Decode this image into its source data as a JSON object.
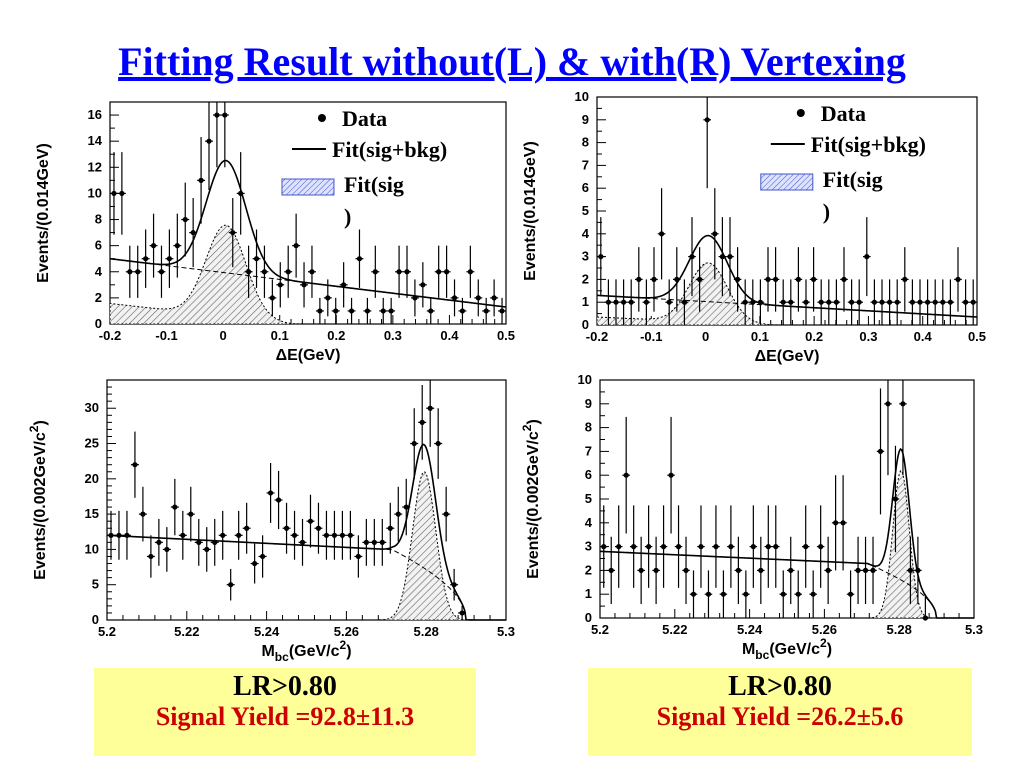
{
  "title": "Fitting Result without(L) & with(R) Vertexing",
  "legend": {
    "data": "Data",
    "fit_total": "Fit(sig+bkg)",
    "fit_sig_line1": "Fit(sig",
    "fit_sig_line2": ")"
  },
  "boxes": [
    {
      "lr": "LR>0.80",
      "yield": "Signal Yield =92.8±11.3"
    },
    {
      "lr": "LR>0.80",
      "yield": "Signal Yield =26.2±5.6"
    }
  ],
  "chart_data": [
    {
      "type": "scatter",
      "xlabel": "ΔE(GeV)",
      "ylabel": "Events/(0.014GeV)",
      "xlim": [
        -0.2,
        0.5
      ],
      "ylim": [
        0,
        17
      ],
      "xticks": [
        "-0.2",
        "-0.1",
        "0",
        "0.1",
        "0.2",
        "0.3",
        "0.4",
        "0.5"
      ],
      "yticks": [
        "0",
        "2",
        "4",
        "6",
        "8",
        "10",
        "12",
        "14",
        "16"
      ],
      "series": [
        {
          "name": "Data",
          "x": [
            -0.193,
            -0.179,
            -0.165,
            -0.151,
            -0.137,
            -0.123,
            -0.109,
            -0.095,
            -0.081,
            -0.067,
            -0.053,
            -0.039,
            -0.025,
            -0.011,
            0.003,
            0.017,
            0.031,
            0.045,
            0.059,
            0.073,
            0.087,
            0.101,
            0.115,
            0.129,
            0.143,
            0.157,
            0.171,
            0.185,
            0.199,
            0.213,
            0.227,
            0.241,
            0.255,
            0.269,
            0.283,
            0.297,
            0.311,
            0.325,
            0.339,
            0.353,
            0.367,
            0.381,
            0.395,
            0.409,
            0.423,
            0.437,
            0.451,
            0.465,
            0.479,
            0.493
          ],
          "y": [
            10,
            10,
            4,
            4,
            5,
            6,
            4,
            5,
            6,
            8,
            7,
            11,
            14,
            16,
            16,
            7,
            10,
            4,
            5,
            4,
            2,
            3,
            4,
            6,
            3,
            4,
            1,
            2,
            1,
            3,
            1,
            5,
            1,
            4,
            1,
            1,
            4,
            4,
            2,
            3,
            1,
            4,
            4,
            2,
            1,
            4,
            2,
            1,
            2,
            1
          ]
        }
      ],
      "fit_total_params": {
        "background_at_xmin": 5.0,
        "background_at_xmax": 1.3,
        "peak_amplitude": 8.6,
        "mean": 0.005,
        "sigma": 0.035
      },
      "fit_sig_params": {
        "background_at_xmin": 4.5,
        "background_at_xmax": 0.0,
        "peak_amplitude": 7.0,
        "mean": 0.005,
        "sigma": 0.035
      }
    },
    {
      "type": "scatter",
      "xlabel": "ΔE(GeV)",
      "ylabel": "Events/(0.014GeV)",
      "xlim": [
        -0.2,
        0.5
      ],
      "ylim": [
        0,
        10
      ],
      "xticks": [
        "-0.2",
        "-0.1",
        "0",
        "0.1",
        "0.2",
        "0.3",
        "0.4",
        "0.5"
      ],
      "yticks": [
        "0",
        "1",
        "2",
        "3",
        "4",
        "5",
        "6",
        "7",
        "8",
        "9",
        "10"
      ],
      "series": [
        {
          "name": "Data",
          "x": [
            -0.193,
            -0.179,
            -0.165,
            -0.151,
            -0.137,
            -0.123,
            -0.109,
            -0.095,
            -0.081,
            -0.067,
            -0.053,
            -0.039,
            -0.025,
            -0.011,
            0.003,
            0.017,
            0.031,
            0.045,
            0.059,
            0.073,
            0.087,
            0.101,
            0.115,
            0.129,
            0.143,
            0.157,
            0.171,
            0.185,
            0.199,
            0.213,
            0.227,
            0.241,
            0.255,
            0.269,
            0.283,
            0.297,
            0.311,
            0.325,
            0.339,
            0.353,
            0.367,
            0.381,
            0.395,
            0.409,
            0.423,
            0.437,
            0.451,
            0.465,
            0.479,
            0.493
          ],
          "y": [
            3,
            1,
            1,
            1,
            1,
            2,
            1,
            2,
            4,
            1,
            2,
            1,
            3,
            2,
            9,
            4,
            3,
            3,
            2,
            1,
            1,
            1,
            2,
            2,
            1,
            1,
            2,
            1,
            2,
            1,
            1,
            1,
            2,
            1,
            1,
            3,
            1,
            1,
            1,
            1,
            2,
            1,
            1,
            1,
            1,
            1,
            1,
            2,
            1,
            1
          ]
        }
      ],
      "fit_total_params": {
        "background_at_xmin": 1.3,
        "background_at_xmax": 0.35,
        "peak_amplitude": 2.9,
        "mean": 0.005,
        "sigma": 0.035
      },
      "fit_sig_params": {
        "background_at_xmin": 1.0,
        "background_at_xmax": 0.0,
        "peak_amplitude": 2.6,
        "mean": 0.005,
        "sigma": 0.035
      }
    },
    {
      "type": "scatter",
      "xlabel": "Mbc(GeV/c2)",
      "ylabel": "Events/(0.002GeV/c2)",
      "xlim": [
        5.2,
        5.3
      ],
      "ylim": [
        0,
        34
      ],
      "xticks": [
        "5.2",
        "5.22",
        "5.24",
        "5.26",
        "5.28",
        "5.3"
      ],
      "yticks": [
        "0",
        "5",
        "10",
        "15",
        "20",
        "25",
        "30"
      ],
      "series": [
        {
          "name": "Data",
          "x": [
            5.201,
            5.203,
            5.205,
            5.207,
            5.209,
            5.211,
            5.213,
            5.215,
            5.217,
            5.219,
            5.221,
            5.223,
            5.225,
            5.227,
            5.229,
            5.231,
            5.233,
            5.235,
            5.237,
            5.239,
            5.241,
            5.243,
            5.245,
            5.247,
            5.249,
            5.251,
            5.253,
            5.255,
            5.257,
            5.259,
            5.261,
            5.263,
            5.265,
            5.267,
            5.269,
            5.271,
            5.273,
            5.275,
            5.277,
            5.279,
            5.281,
            5.283,
            5.285,
            5.287,
            5.289
          ],
          "y": [
            12,
            12,
            12,
            22,
            15,
            9,
            11,
            10,
            16,
            12,
            15,
            11,
            10,
            11,
            12,
            5,
            12,
            13,
            8,
            9,
            18,
            17,
            13,
            12,
            11,
            14,
            13,
            12,
            12,
            12,
            12,
            9,
            11,
            11,
            11,
            13,
            15,
            16,
            25,
            28,
            30,
            25,
            15,
            5,
            1
          ]
        }
      ],
      "fit_total_params": {
        "background_at_xmin": 12,
        "background_at_xmax": 10,
        "endpoint": 5.29,
        "peak_amplitude": 17.5,
        "mean": 5.2795,
        "sigma": 0.0029
      },
      "fit_sig_params": {
        "peak_amplitude": 21,
        "mean": 5.2795,
        "sigma": 0.0029
      }
    },
    {
      "type": "scatter",
      "xlabel": "Mbc(GeV/c2)",
      "ylabel": "Events/(0.002GeV/c2)",
      "xlim": [
        5.2,
        5.3
      ],
      "ylim": [
        0,
        10
      ],
      "xticks": [
        "5.2",
        "5.22",
        "5.24",
        "5.26",
        "5.28",
        "5.3"
      ],
      "yticks": [
        "0",
        "1",
        "2",
        "3",
        "4",
        "5",
        "6",
        "7",
        "8",
        "9",
        "10"
      ],
      "series": [
        {
          "name": "Data",
          "x": [
            5.201,
            5.203,
            5.205,
            5.207,
            5.209,
            5.211,
            5.213,
            5.215,
            5.217,
            5.219,
            5.221,
            5.223,
            5.225,
            5.227,
            5.229,
            5.231,
            5.233,
            5.235,
            5.237,
            5.239,
            5.241,
            5.243,
            5.245,
            5.247,
            5.249,
            5.251,
            5.253,
            5.255,
            5.257,
            5.259,
            5.261,
            5.263,
            5.265,
            5.267,
            5.269,
            5.271,
            5.273,
            5.275,
            5.277,
            5.279,
            5.281,
            5.283,
            5.285,
            5.287
          ],
          "y": [
            3,
            2,
            3,
            6,
            3,
            2,
            3,
            2,
            3,
            6,
            3,
            2,
            1,
            3,
            1,
            3,
            1,
            3,
            2,
            1,
            3,
            2,
            3,
            3,
            1,
            2,
            1,
            3,
            1,
            3,
            2,
            4,
            4,
            1,
            2,
            2,
            2,
            7,
            9,
            5,
            9,
            2,
            2,
            0
          ]
        }
      ],
      "fit_total_params": {
        "background_at_xmin": 2.8,
        "background_at_xmax": 2.3,
        "endpoint": 5.29,
        "peak_amplitude": 5.5,
        "mean": 5.2805,
        "sigma": 0.0022
      },
      "fit_sig_params": {
        "peak_amplitude": 6.2,
        "mean": 5.2805,
        "sigma": 0.0022
      }
    }
  ]
}
